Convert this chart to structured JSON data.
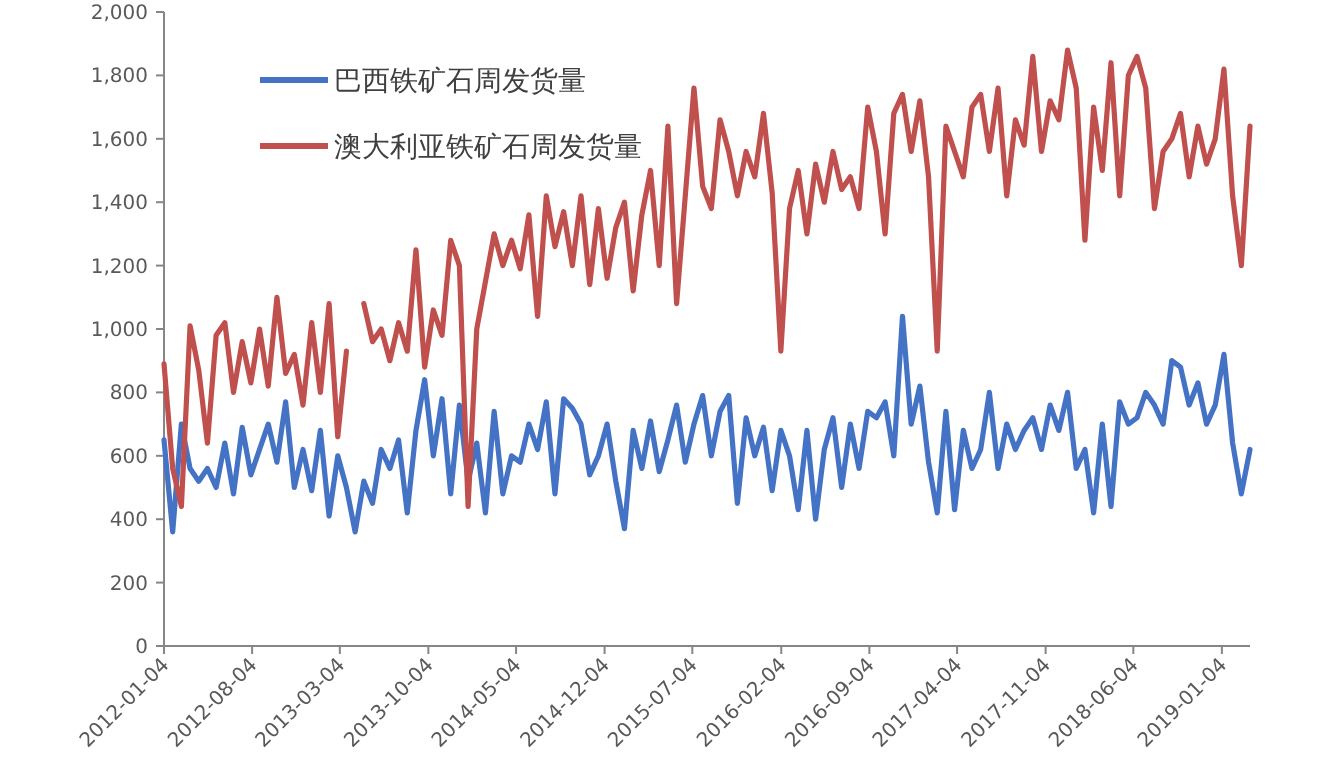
{
  "chart_data": {
    "type": "line",
    "x": [
      "2012-01-04",
      "2012-01-25",
      "2012-02-15",
      "2012-03-07",
      "2012-03-28",
      "2012-04-18",
      "2012-05-09",
      "2012-05-30",
      "2012-06-20",
      "2012-07-11",
      "2012-08-01",
      "2012-08-22",
      "2012-09-12",
      "2012-10-03",
      "2012-10-24",
      "2012-11-14",
      "2012-12-05",
      "2012-12-26",
      "2013-01-16",
      "2013-02-06",
      "2013-02-27",
      "2013-03-20",
      "2013-04-10",
      "2013-05-01",
      "2013-05-22",
      "2013-06-12",
      "2013-07-03",
      "2013-07-24",
      "2013-08-14",
      "2013-09-04",
      "2013-09-25",
      "2013-10-16",
      "2013-11-06",
      "2013-11-27",
      "2013-12-18",
      "2014-01-08",
      "2014-01-29",
      "2014-02-19",
      "2014-03-12",
      "2014-04-02",
      "2014-04-23",
      "2014-05-14",
      "2014-06-04",
      "2014-06-25",
      "2014-07-16",
      "2014-08-06",
      "2014-08-27",
      "2014-09-17",
      "2014-10-08",
      "2014-10-29",
      "2014-11-19",
      "2014-12-10",
      "2014-12-31",
      "2015-01-21",
      "2015-02-11",
      "2015-03-04",
      "2015-03-25",
      "2015-04-15",
      "2015-05-06",
      "2015-05-27",
      "2015-06-17",
      "2015-07-08",
      "2015-07-29",
      "2015-08-19",
      "2015-09-09",
      "2015-09-30",
      "2015-10-21",
      "2015-11-11",
      "2015-12-02",
      "2015-12-23",
      "2016-01-13",
      "2016-02-03",
      "2016-02-24",
      "2016-03-16",
      "2016-04-06",
      "2016-04-27",
      "2016-05-18",
      "2016-06-08",
      "2016-06-29",
      "2016-07-20",
      "2016-08-10",
      "2016-08-31",
      "2016-09-21",
      "2016-10-12",
      "2016-11-02",
      "2016-11-23",
      "2016-12-14",
      "2017-01-04",
      "2017-01-25",
      "2017-02-15",
      "2017-03-08",
      "2017-03-29",
      "2017-04-19",
      "2017-05-10",
      "2017-05-31",
      "2017-06-21",
      "2017-07-12",
      "2017-08-02",
      "2017-08-23",
      "2017-09-13",
      "2017-10-04",
      "2017-10-25",
      "2017-11-15",
      "2017-12-06",
      "2017-12-27",
      "2018-01-17",
      "2018-02-07",
      "2018-02-28",
      "2018-03-21",
      "2018-04-11",
      "2018-05-02",
      "2018-05-23",
      "2018-06-13",
      "2018-07-04",
      "2018-07-25",
      "2018-08-15",
      "2018-09-05",
      "2018-09-26",
      "2018-10-17",
      "2018-11-07",
      "2018-11-28",
      "2018-12-19",
      "2019-01-09",
      "2019-01-30",
      "2019-02-20",
      "2019-03-13"
    ],
    "series": [
      {
        "name": "巴西铁矿石周发货量",
        "color": "#4472c4",
        "values": [
          650,
          360,
          700,
          560,
          520,
          560,
          500,
          640,
          480,
          690,
          540,
          620,
          700,
          580,
          770,
          500,
          620,
          490,
          680,
          410,
          600,
          500,
          360,
          520,
          450,
          620,
          560,
          650,
          420,
          680,
          840,
          600,
          780,
          480,
          760,
          520,
          640,
          420,
          740,
          480,
          600,
          580,
          700,
          620,
          770,
          480,
          780,
          750,
          700,
          540,
          600,
          700,
          520,
          370,
          680,
          560,
          710,
          550,
          650,
          760,
          580,
          700,
          790,
          600,
          740,
          790,
          450,
          720,
          600,
          690,
          490,
          680,
          600,
          430,
          680,
          400,
          620,
          720,
          500,
          700,
          560,
          740,
          720,
          770,
          600,
          1040,
          700,
          820,
          580,
          420,
          740,
          430,
          680,
          560,
          620,
          800,
          560,
          700,
          620,
          680,
          720,
          620,
          760,
          680,
          800,
          560,
          620,
          420,
          700,
          440,
          770,
          700,
          720,
          800,
          760,
          700,
          900,
          880,
          760,
          830,
          700,
          760,
          920,
          640,
          480,
          620
        ]
      },
      {
        "name": "澳大利亚铁矿石周发货量",
        "color": "#c0504d",
        "values": [
          890,
          560,
          440,
          1010,
          870,
          640,
          980,
          1020,
          800,
          960,
          830,
          1000,
          820,
          1100,
          860,
          920,
          760,
          1020,
          800,
          1080,
          660,
          930,
          null,
          1080,
          960,
          1000,
          900,
          1020,
          930,
          1250,
          880,
          1060,
          980,
          1280,
          1200,
          440,
          1000,
          1150,
          1300,
          1200,
          1280,
          1190,
          1360,
          1040,
          1420,
          1260,
          1370,
          1200,
          1420,
          1140,
          1380,
          1160,
          1320,
          1400,
          1120,
          1360,
          1500,
          1200,
          1640,
          1080,
          1420,
          1760,
          1450,
          1380,
          1660,
          1560,
          1420,
          1560,
          1480,
          1680,
          1430,
          930,
          1380,
          1500,
          1300,
          1520,
          1400,
          1560,
          1440,
          1480,
          1380,
          1700,
          1560,
          1300,
          1680,
          1740,
          1560,
          1720,
          1480,
          930,
          1640,
          1560,
          1480,
          1700,
          1740,
          1560,
          1760,
          1420,
          1660,
          1580,
          1860,
          1560,
          1720,
          1660,
          1880,
          1760,
          1280,
          1700,
          1500,
          1840,
          1420,
          1800,
          1860,
          1760,
          1380,
          1560,
          1600,
          1680,
          1480,
          1640,
          1520,
          1600,
          1820,
          1420,
          1200,
          1640
        ]
      }
    ],
    "xlim": [
      "2012-01-04",
      "2019-03-13"
    ],
    "xticks": [
      "2012-01-04",
      "2012-08-04",
      "2013-03-04",
      "2013-10-04",
      "2014-05-04",
      "2014-12-04",
      "2015-07-04",
      "2016-02-04",
      "2016-09-04",
      "2017-04-04",
      "2017-11-04",
      "2018-06-04",
      "2019-01-04"
    ],
    "ylim": [
      0,
      2000
    ],
    "yticks": [
      {
        "value": 0,
        "label": "0"
      },
      {
        "value": 200,
        "label": "200"
      },
      {
        "value": 400,
        "label": "400"
      },
      {
        "value": 600,
        "label": "600"
      },
      {
        "value": 800,
        "label": "800"
      },
      {
        "value": 1000,
        "label": "1,000"
      },
      {
        "value": 1200,
        "label": "1,200"
      },
      {
        "value": 1400,
        "label": "1,400"
      },
      {
        "value": 1600,
        "label": "1,600"
      },
      {
        "value": 1800,
        "label": "1,800"
      },
      {
        "value": 2000,
        "label": "2,000"
      }
    ],
    "legend": "top left",
    "grid": false,
    "marker": "none",
    "line_style": "solid"
  }
}
